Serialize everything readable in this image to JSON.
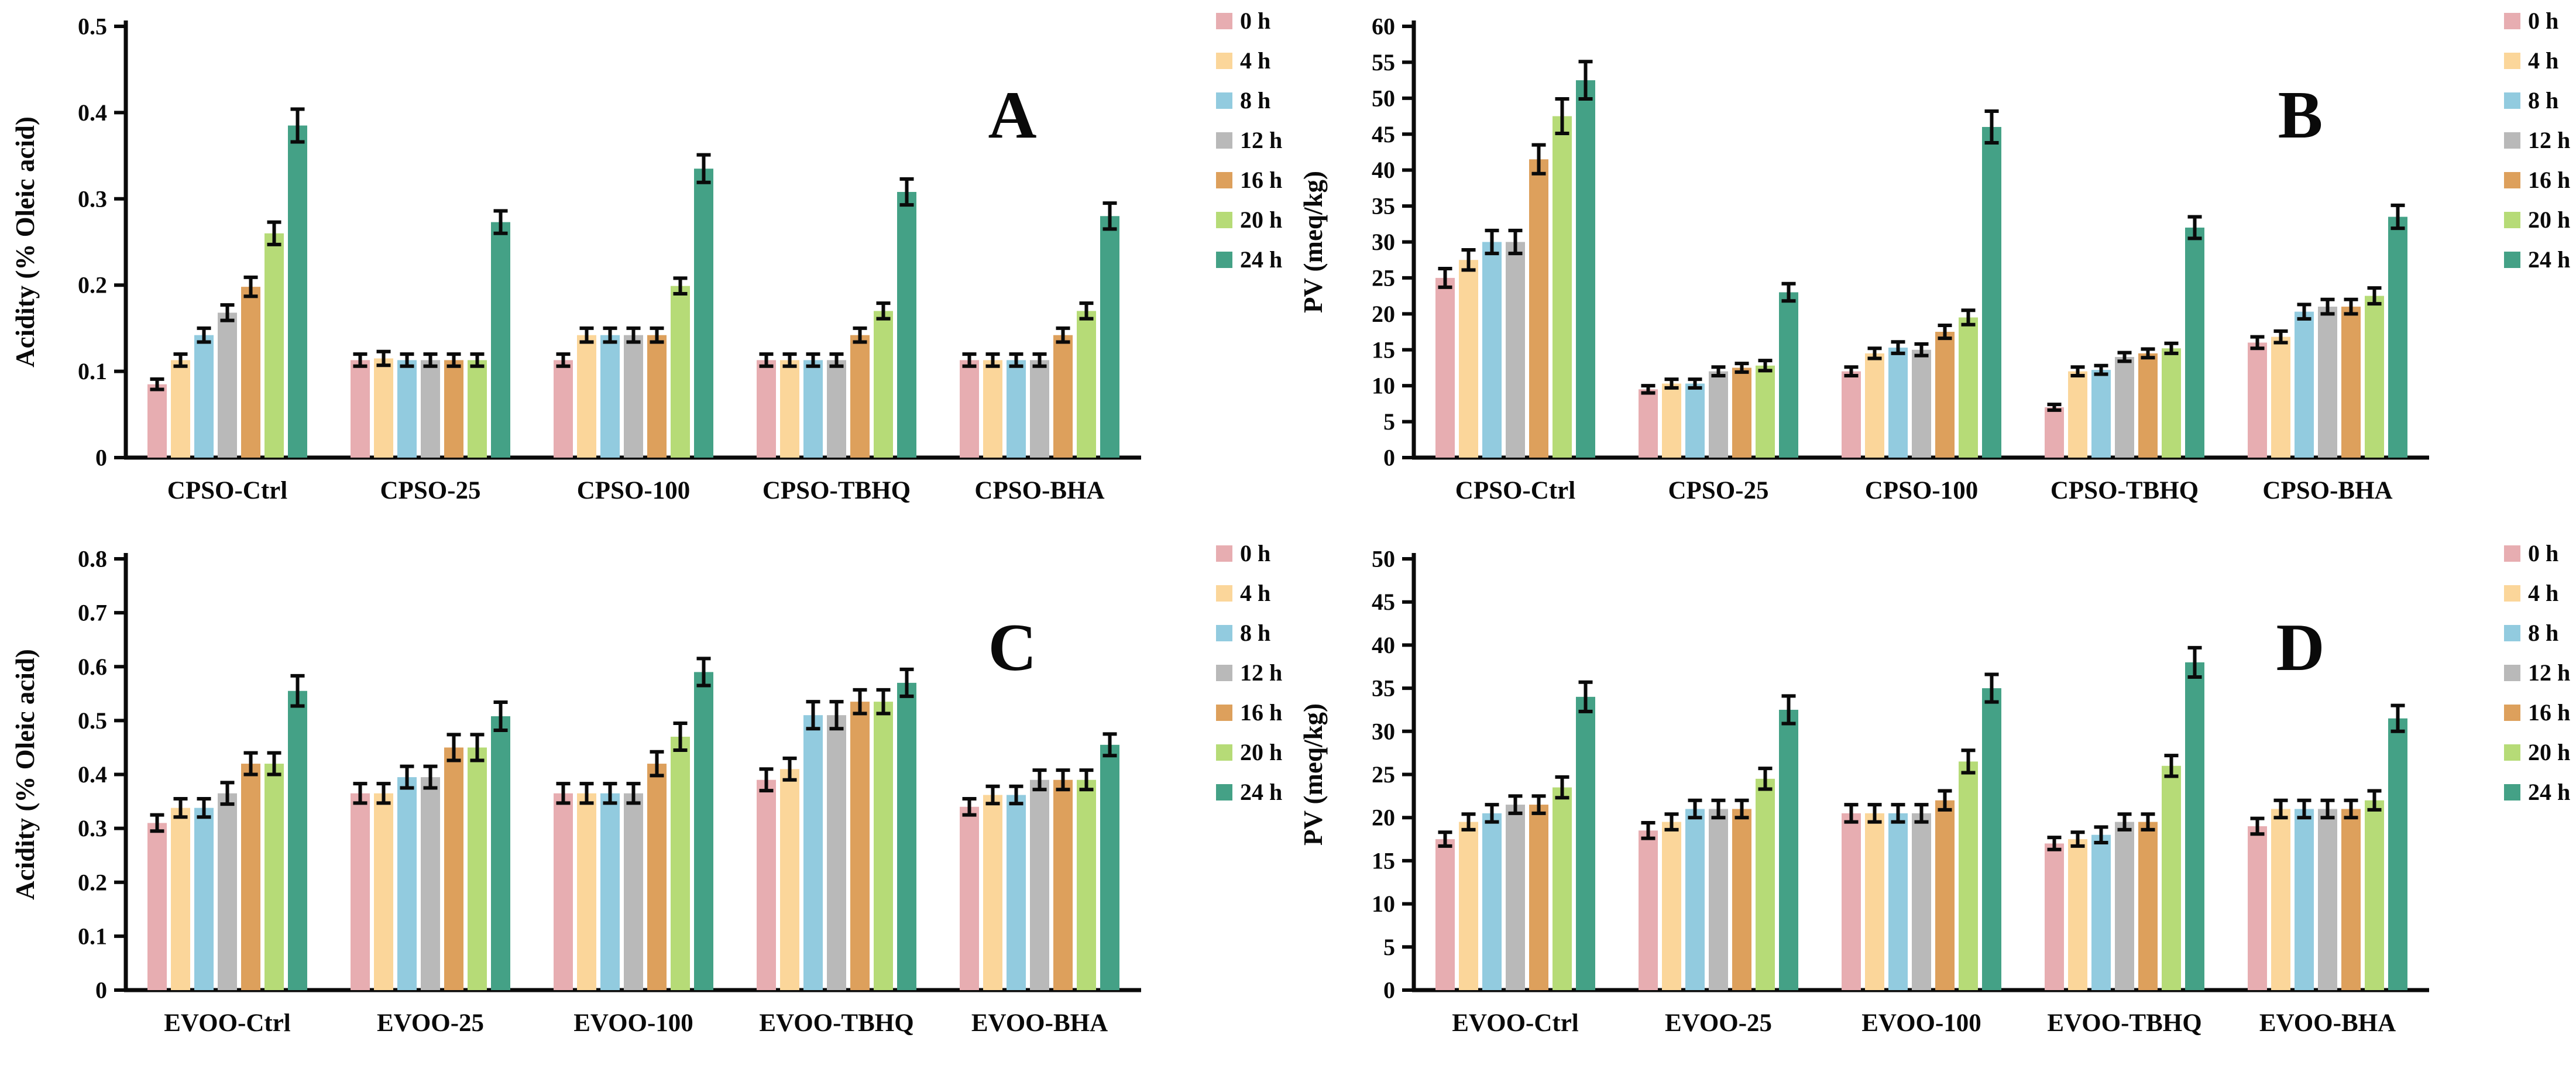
{
  "figure_title": "",
  "legend_labels": [
    "0 h",
    "4 h",
    "8 h",
    "12 h",
    "16 h",
    "20 h",
    "24 h"
  ],
  "series_colors": {
    "0 h": "#E7ADB1",
    "4 h": "#FBD69A",
    "8 h": "#92CBDF",
    "12 h": "#B9B9B9",
    "16 h": "#DDA05C",
    "20 h": "#B6DB77",
    "24 h": "#44A186"
  },
  "chart_data": [
    {
      "type": "bar",
      "panel_label": "A",
      "ylabel": "Acidity (% Oleic acid)",
      "xlabel": "",
      "ylim": [
        0,
        0.5
      ],
      "ytick_labels": [
        "0",
        "0.1",
        "0.2",
        "0.3",
        "0.4",
        "0.5"
      ],
      "grid": false,
      "legend_position": "right",
      "error_bars": true,
      "categories": [
        "CPSO-Ctrl",
        "CPSO-25",
        "CPSO-100",
        "CPSO-TBHQ",
        "CPSO-BHA"
      ],
      "series": [
        {
          "name": "0 h",
          "color": "#E7ADB1",
          "values": [
            0.085,
            0.113,
            0.113,
            0.113,
            0.113
          ],
          "errors": [
            0.006,
            0.007,
            0.007,
            0.007,
            0.007
          ]
        },
        {
          "name": "4 h",
          "color": "#FBD69A",
          "values": [
            0.113,
            0.115,
            0.142,
            0.113,
            0.113
          ],
          "errors": [
            0.007,
            0.008,
            0.008,
            0.007,
            0.007
          ]
        },
        {
          "name": "8 h",
          "color": "#92CBDF",
          "values": [
            0.142,
            0.113,
            0.142,
            0.113,
            0.113
          ],
          "errors": [
            0.008,
            0.007,
            0.008,
            0.007,
            0.007
          ]
        },
        {
          "name": "12 h",
          "color": "#B9B9B9",
          "values": [
            0.168,
            0.113,
            0.142,
            0.113,
            0.113
          ],
          "errors": [
            0.009,
            0.007,
            0.008,
            0.007,
            0.007
          ]
        },
        {
          "name": "16 h",
          "color": "#DDA05C",
          "values": [
            0.198,
            0.113,
            0.142,
            0.142,
            0.142
          ],
          "errors": [
            0.011,
            0.007,
            0.008,
            0.008,
            0.008
          ]
        },
        {
          "name": "20 h",
          "color": "#B6DB77",
          "values": [
            0.26,
            0.113,
            0.199,
            0.17,
            0.17
          ],
          "errors": [
            0.013,
            0.007,
            0.009,
            0.009,
            0.009
          ]
        },
        {
          "name": "24 h",
          "color": "#44A186",
          "values": [
            0.385,
            0.273,
            0.335,
            0.308,
            0.28
          ],
          "errors": [
            0.019,
            0.013,
            0.016,
            0.015,
            0.015
          ]
        }
      ]
    },
    {
      "type": "bar",
      "panel_label": "B",
      "ylabel": "PV (meq/kg)",
      "xlabel": "",
      "ylim": [
        0,
        60
      ],
      "ytick_labels": [
        "0",
        "5",
        "10",
        "15",
        "20",
        "25",
        "30",
        "35",
        "40",
        "45",
        "50",
        "55",
        "60"
      ],
      "grid": false,
      "legend_position": "right",
      "error_bars": true,
      "categories": [
        "CPSO-Ctrl",
        "CPSO-25",
        "CPSO-100",
        "CPSO-TBHQ",
        "CPSO-BHA"
      ],
      "series": [
        {
          "name": "0 h",
          "color": "#E7ADB1",
          "values": [
            25.0,
            9.5,
            12.0,
            7.0,
            16.0
          ],
          "errors": [
            1.3,
            0.5,
            0.6,
            0.4,
            0.8
          ]
        },
        {
          "name": "4 h",
          "color": "#FBD69A",
          "values": [
            27.5,
            10.3,
            14.5,
            12.0,
            16.8
          ],
          "errors": [
            1.4,
            0.6,
            0.7,
            0.6,
            0.8
          ]
        },
        {
          "name": "8 h",
          "color": "#92CBDF",
          "values": [
            30.0,
            10.3,
            15.3,
            12.2,
            20.3
          ],
          "errors": [
            1.6,
            0.6,
            0.8,
            0.6,
            1.0
          ]
        },
        {
          "name": "12 h",
          "color": "#B9B9B9",
          "values": [
            30.0,
            12.0,
            15.0,
            14.0,
            21.0
          ],
          "errors": [
            1.6,
            0.6,
            0.8,
            0.6,
            1.0
          ]
        },
        {
          "name": "16 h",
          "color": "#DDA05C",
          "values": [
            41.5,
            12.5,
            17.5,
            14.5,
            21.0
          ],
          "errors": [
            2.0,
            0.6,
            0.9,
            0.6,
            1.0
          ]
        },
        {
          "name": "20 h",
          "color": "#B6DB77",
          "values": [
            47.5,
            12.8,
            19.5,
            15.2,
            22.5
          ],
          "errors": [
            2.4,
            0.7,
            1.0,
            0.7,
            1.1
          ]
        },
        {
          "name": "24 h",
          "color": "#44A186",
          "values": [
            52.5,
            23.0,
            46.0,
            32.0,
            33.5
          ],
          "errors": [
            2.6,
            1.2,
            2.2,
            1.5,
            1.6
          ]
        }
      ]
    },
    {
      "type": "bar",
      "panel_label": "C",
      "ylabel": "Acidity (% Oleic acid)",
      "xlabel": "",
      "ylim": [
        0,
        0.8
      ],
      "ytick_labels": [
        "0",
        "0.1",
        "0.2",
        "0.3",
        "0.4",
        "0.5",
        "0.6",
        "0.7",
        "0.8"
      ],
      "grid": false,
      "legend_position": "right",
      "error_bars": true,
      "categories": [
        "EVOO-Ctrl",
        "EVOO-25",
        "EVOO-100",
        "EVOO-TBHQ",
        "EVOO-BHA"
      ],
      "series": [
        {
          "name": "0 h",
          "color": "#E7ADB1",
          "values": [
            0.31,
            0.365,
            0.365,
            0.39,
            0.34
          ],
          "errors": [
            0.015,
            0.018,
            0.018,
            0.02,
            0.015
          ]
        },
        {
          "name": "4 h",
          "color": "#FBD69A",
          "values": [
            0.338,
            0.365,
            0.365,
            0.41,
            0.362
          ],
          "errors": [
            0.017,
            0.018,
            0.018,
            0.02,
            0.016
          ]
        },
        {
          "name": "8 h",
          "color": "#92CBDF",
          "values": [
            0.338,
            0.395,
            0.365,
            0.51,
            0.362
          ],
          "errors": [
            0.017,
            0.02,
            0.018,
            0.025,
            0.016
          ]
        },
        {
          "name": "12 h",
          "color": "#B9B9B9",
          "values": [
            0.365,
            0.395,
            0.365,
            0.51,
            0.39
          ],
          "errors": [
            0.02,
            0.02,
            0.018,
            0.025,
            0.018
          ]
        },
        {
          "name": "16 h",
          "color": "#DDA05C",
          "values": [
            0.42,
            0.45,
            0.42,
            0.535,
            0.39
          ],
          "errors": [
            0.02,
            0.024,
            0.022,
            0.022,
            0.018
          ]
        },
        {
          "name": "20 h",
          "color": "#B6DB77",
          "values": [
            0.42,
            0.45,
            0.47,
            0.535,
            0.39
          ],
          "errors": [
            0.02,
            0.024,
            0.025,
            0.022,
            0.018
          ]
        },
        {
          "name": "24 h",
          "color": "#44A186",
          "values": [
            0.555,
            0.508,
            0.59,
            0.57,
            0.455
          ],
          "errors": [
            0.028,
            0.026,
            0.025,
            0.025,
            0.02
          ]
        }
      ]
    },
    {
      "type": "bar",
      "panel_label": "D",
      "ylabel": "PV (meq/kg)",
      "xlabel": "",
      "ylim": [
        0,
        50
      ],
      "ytick_labels": [
        "0",
        "5",
        "10",
        "15",
        "20",
        "25",
        "30",
        "35",
        "40",
        "45",
        "50"
      ],
      "grid": false,
      "legend_position": "right",
      "error_bars": true,
      "categories": [
        "EVOO-Ctrl",
        "EVOO-25",
        "EVOO-100",
        "EVOO-TBHQ",
        "EVOO-BHA"
      ],
      "series": [
        {
          "name": "0 h",
          "color": "#E7ADB1",
          "values": [
            17.5,
            18.5,
            20.5,
            17.0,
            19.0
          ],
          "errors": [
            0.8,
            0.9,
            1.0,
            0.7,
            0.9
          ]
        },
        {
          "name": "4 h",
          "color": "#FBD69A",
          "values": [
            19.5,
            19.5,
            20.5,
            17.5,
            21.0
          ],
          "errors": [
            0.9,
            0.9,
            1.0,
            0.8,
            1.0
          ]
        },
        {
          "name": "8 h",
          "color": "#92CBDF",
          "values": [
            20.5,
            21.0,
            20.5,
            18.0,
            21.0
          ],
          "errors": [
            1.0,
            1.0,
            1.0,
            0.9,
            1.0
          ]
        },
        {
          "name": "12 h",
          "color": "#B9B9B9",
          "values": [
            21.5,
            21.0,
            20.5,
            19.5,
            21.0
          ],
          "errors": [
            1.0,
            1.0,
            1.0,
            0.9,
            1.0
          ]
        },
        {
          "name": "16 h",
          "color": "#DDA05C",
          "values": [
            21.5,
            21.0,
            22.0,
            19.5,
            21.0
          ],
          "errors": [
            1.0,
            1.0,
            1.1,
            0.9,
            1.0
          ]
        },
        {
          "name": "20 h",
          "color": "#B6DB77",
          "values": [
            23.5,
            24.5,
            26.5,
            26.0,
            22.0
          ],
          "errors": [
            1.2,
            1.2,
            1.3,
            1.2,
            1.1
          ]
        },
        {
          "name": "24 h",
          "color": "#44A186",
          "values": [
            34.0,
            32.5,
            35.0,
            38.0,
            31.5
          ],
          "errors": [
            1.7,
            1.6,
            1.6,
            1.7,
            1.5
          ]
        }
      ]
    }
  ]
}
